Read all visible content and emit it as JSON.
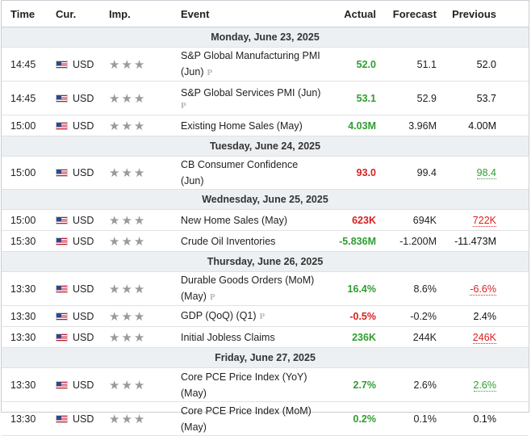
{
  "headers": {
    "time": "Time",
    "cur": "Cur.",
    "imp": "Imp.",
    "event": "Event",
    "actual": "Actual",
    "forecast": "Forecast",
    "previous": "Previous"
  },
  "stars": "★★★",
  "prelim_badge": "P",
  "colors": {
    "positive": "#2e9e2e",
    "negative": "#d91f1f",
    "day_header_bg": "#edf0f3",
    "star": "#9a9a9a"
  },
  "days": [
    {
      "label": "Monday, June 23, 2025",
      "events": [
        {
          "time": "14:45",
          "cur": "USD",
          "event": "S&P Global Manufacturing PMI (Jun)",
          "prelim": true,
          "actual": "52.0",
          "actual_color": "green",
          "forecast": "51.1",
          "previous": "52.0",
          "previous_color": "dark",
          "tall": true
        },
        {
          "time": "14:45",
          "cur": "USD",
          "event": "S&P Global Services PMI (Jun)",
          "prelim": true,
          "prelim_below": true,
          "actual": "53.1",
          "actual_color": "green",
          "forecast": "52.9",
          "previous": "53.7",
          "previous_color": "dark",
          "tall": true
        },
        {
          "time": "15:00",
          "cur": "USD",
          "event": "Existing Home Sales (May)",
          "actual": "4.03M",
          "actual_color": "green",
          "forecast": "3.96M",
          "previous": "4.00M",
          "previous_color": "dark"
        }
      ]
    },
    {
      "label": "Tuesday, June 24, 2025",
      "events": [
        {
          "time": "15:00",
          "cur": "USD",
          "event": "CB Consumer Confidence (Jun)",
          "actual": "93.0",
          "actual_color": "red",
          "forecast": "99.4",
          "previous": "98.4",
          "previous_color": "green",
          "previous_revised": true
        }
      ]
    },
    {
      "label": "Wednesday, June 25, 2025",
      "events": [
        {
          "time": "15:00",
          "cur": "USD",
          "event": "New Home Sales (May)",
          "actual": "623K",
          "actual_color": "red",
          "forecast": "694K",
          "previous": "722K",
          "previous_color": "red",
          "previous_revised": true
        },
        {
          "time": "15:30",
          "cur": "USD",
          "event": "Crude Oil Inventories",
          "actual": "-5.836M",
          "actual_color": "green",
          "forecast": "-1.200M",
          "previous": "-11.473M",
          "previous_color": "dark"
        }
      ]
    },
    {
      "label": "Thursday, June 26, 2025",
      "events": [
        {
          "time": "13:30",
          "cur": "USD",
          "event": "Durable Goods Orders (MoM) (May)",
          "prelim": true,
          "actual": "16.4%",
          "actual_color": "green",
          "forecast": "8.6%",
          "previous": "-6.6%",
          "previous_color": "red",
          "previous_revised": true,
          "tall": true
        },
        {
          "time": "13:30",
          "cur": "USD",
          "event": "GDP (QoQ) (Q1)",
          "prelim": true,
          "actual": "-0.5%",
          "actual_color": "red",
          "forecast": "-0.2%",
          "previous": "2.4%",
          "previous_color": "dark"
        },
        {
          "time": "13:30",
          "cur": "USD",
          "event": "Initial Jobless Claims",
          "actual": "236K",
          "actual_color": "green",
          "forecast": "244K",
          "previous": "246K",
          "previous_color": "red",
          "previous_revised": true
        }
      ]
    },
    {
      "label": "Friday, June 27, 2025",
      "events": [
        {
          "time": "13:30",
          "cur": "USD",
          "event": "Core PCE Price Index (YoY) (May)",
          "actual": "2.7%",
          "actual_color": "green",
          "forecast": "2.6%",
          "previous": "2.6%",
          "previous_color": "green",
          "previous_revised": true,
          "tall": true
        },
        {
          "time": "13:30",
          "cur": "USD",
          "event": "Core PCE Price Index (MoM) (May)",
          "actual": "0.2%",
          "actual_color": "green",
          "forecast": "0.1%",
          "previous": "0.1%",
          "previous_color": "dark",
          "tall": true
        }
      ]
    }
  ]
}
